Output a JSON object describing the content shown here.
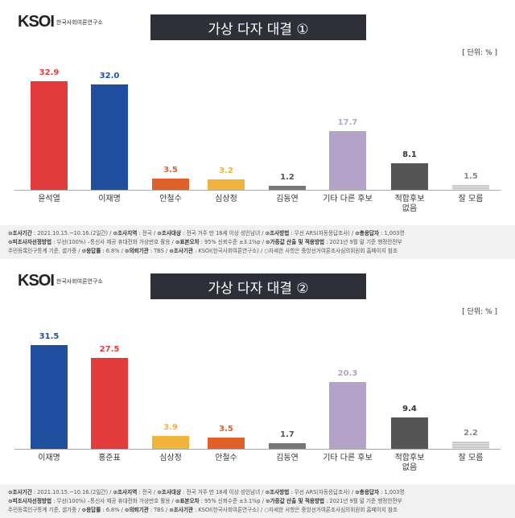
{
  "logo": {
    "text": "KSOI",
    "subtitle": "한국사회여론연구소"
  },
  "unit_label": "[ 단위: % ]",
  "footnote": [
    [
      [
        "조사기간",
        "2021.10.15.~10.16.(2일간)"
      ],
      [
        "조사지역",
        "전국"
      ],
      [
        "조사대상",
        "전국 거주 만 18세 이상 성인남녀"
      ],
      [
        "조사방법",
        "무선 ARS(자동응답조사)"
      ],
      [
        "총응답자",
        "1,003명"
      ]
    ],
    [
      [
        "피조사자선정방법",
        "무선(100%) –통신사 제공 휴대전화 가상번호 활용"
      ],
      [
        "표본오차",
        "95% 신뢰수준 ±3.1%p"
      ],
      [
        "가중값 산출 및 적용방법",
        "2021년 9월 말 기준 행정안전부"
      ]
    ],
    [
      [
        "",
        "주민등록인구통계 기준, 셀가중"
      ],
      [
        "응답률",
        "6.8%"
      ],
      [
        "의뢰기관",
        "TBS"
      ],
      [
        "조사기관",
        "KSOI(한국사회여론연구소)"
      ],
      [
        "",
        "○자세한 사항은 중앙선거여론조사심의위원회 홈페이지 참조"
      ]
    ]
  ],
  "chart_data": [
    {
      "type": "bar",
      "title": "가상 다자 대결 ①",
      "ylabel": "단위: %",
      "ylim": [
        0,
        40
      ],
      "grid": false,
      "categories": [
        "윤석열",
        "이재명",
        "안철수",
        "심상정",
        "김동연",
        "기타 다른 후보",
        "적합후보 없음",
        "잘 모름"
      ],
      "values": [
        32.9,
        32.0,
        3.5,
        3.2,
        1.2,
        17.7,
        8.1,
        1.5
      ],
      "colors": [
        "#e23b3b",
        "#1f4f9e",
        "#e0602a",
        "#f2b33d",
        "#777777",
        "#b4a2c9",
        "#555555",
        "#c9c9c9"
      ]
    },
    {
      "type": "bar",
      "title": "가상 다자 대결 ②",
      "ylabel": "단위: %",
      "ylim": [
        0,
        40
      ],
      "grid": false,
      "categories": [
        "이재명",
        "홍준표",
        "심상정",
        "안철수",
        "김동연",
        "기타 다른 후보",
        "적합후보 없음",
        "잘 모름"
      ],
      "values": [
        31.5,
        27.5,
        3.9,
        3.5,
        1.7,
        20.3,
        9.4,
        2.2
      ],
      "colors": [
        "#1f4f9e",
        "#e23b3b",
        "#f2b33d",
        "#e0602a",
        "#777777",
        "#b4a2c9",
        "#555555",
        "#c9c9c9"
      ]
    }
  ]
}
